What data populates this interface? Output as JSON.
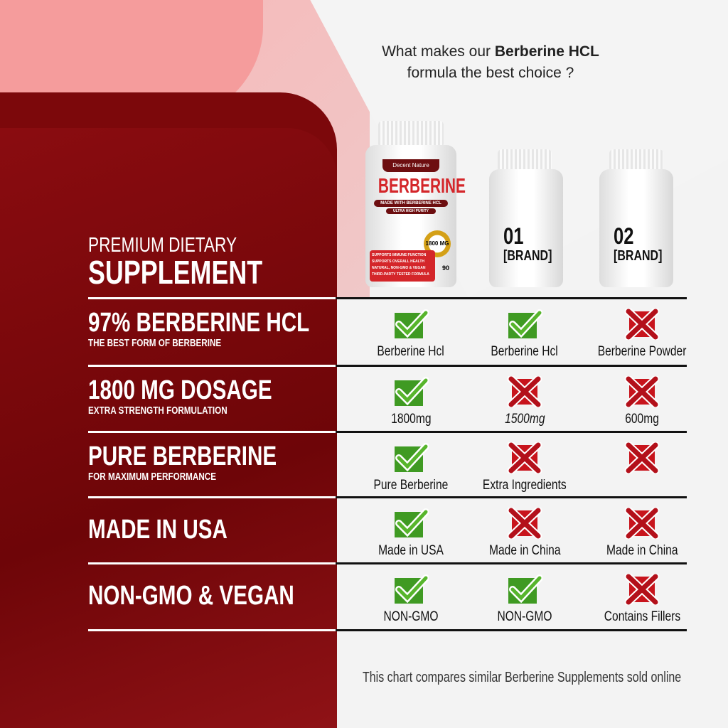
{
  "header": {
    "line1_pre": "What makes our ",
    "line1_bold": "Berberine HCL",
    "line2": "formula the best choice ?"
  },
  "products": [
    {
      "brand": "Decent Nature",
      "name": "BERBERINE",
      "sub1": "MADE WITH BERBERINE HCL",
      "sub2": "ULTRA HIGH PURITY",
      "badge": "1800 MG",
      "count": "90",
      "bullets": [
        "SUPPORTS IMMUNE FUNCTION",
        "SUPPORTS OVERALL HEALTH",
        "NATURAL, NON-GMO & VEGAN",
        "THIRD-PARTY TESTED FORMULA"
      ]
    },
    {
      "number": "01",
      "label": "[BRAND]"
    },
    {
      "number": "02",
      "label": "[BRAND]"
    }
  ],
  "intro": {
    "line1": "PREMIUM DIETARY",
    "line2": "SUPPLEMENT"
  },
  "rows": [
    {
      "title": "97% BERBERINE HCL",
      "subtitle": "THE BEST FORM OF BERBERINE",
      "cells": [
        {
          "icon": "check",
          "text": "Berberine Hcl"
        },
        {
          "icon": "check",
          "text": "Berberine Hcl"
        },
        {
          "icon": "cross",
          "text": "Berberine Powder"
        }
      ]
    },
    {
      "title": "1800 MG DOSAGE",
      "subtitle": "EXTRA STRENGTH FORMULATION",
      "cells": [
        {
          "icon": "check",
          "text": "1800mg"
        },
        {
          "icon": "cross",
          "text": "1500mg"
        },
        {
          "icon": "cross",
          "text": "600mg"
        }
      ]
    },
    {
      "title": "PURE BERBERINE",
      "subtitle": "FOR MAXIMUM PERFORMANCE",
      "cells": [
        {
          "icon": "check",
          "text": "Pure Berberine"
        },
        {
          "icon": "cross",
          "text": "Extra Ingredients"
        },
        {
          "icon": "cross",
          "text": ""
        }
      ]
    },
    {
      "title": "MADE IN USA",
      "subtitle": "",
      "cells": [
        {
          "icon": "check",
          "text": "Made in USA"
        },
        {
          "icon": "cross",
          "text": "Made in China"
        },
        {
          "icon": "cross",
          "text": "Made in China"
        }
      ]
    },
    {
      "title": "NON-GMO & VEGAN",
      "subtitle": "",
      "cells": [
        {
          "icon": "check",
          "text": "NON-GMO"
        },
        {
          "icon": "check",
          "text": "NON-GMO"
        },
        {
          "icon": "cross",
          "text": "Contains Fillers"
        }
      ]
    }
  ],
  "footer": "This chart compares similar Berberine Supplements sold online",
  "colors": {
    "panel": "#7a070a",
    "check": "#3f9a22",
    "cross": "#c8141c"
  }
}
